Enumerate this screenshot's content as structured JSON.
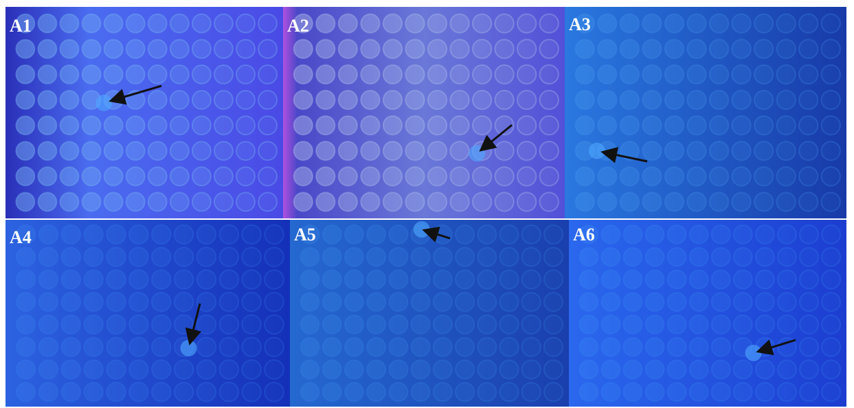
{
  "panels": [
    {
      "label": "A1"
    },
    {
      "label": "A2"
    },
    {
      "label": "A3"
    },
    {
      "label": "A4"
    },
    {
      "label": "A5"
    },
    {
      "label": "A6"
    }
  ]
}
